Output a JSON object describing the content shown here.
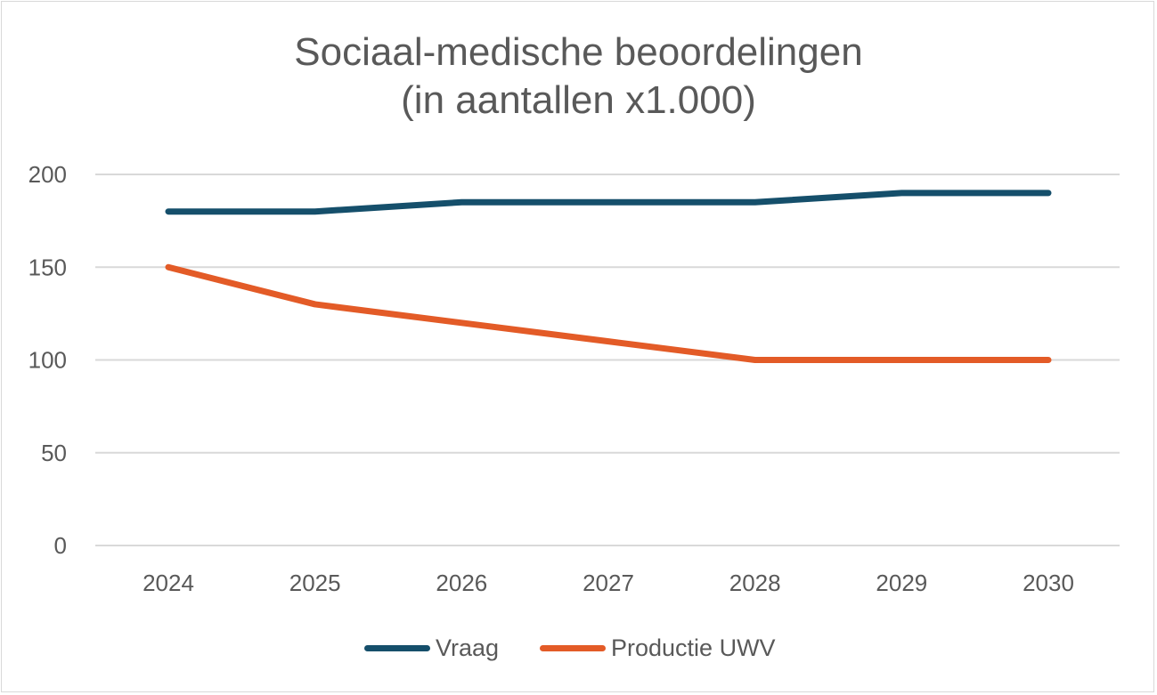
{
  "chart_data": {
    "type": "line",
    "title": "Sociaal-medische beoordelingen",
    "subtitle": "(in aantallen x1.000)",
    "xlabel": "",
    "ylabel": "",
    "categories": [
      "2024",
      "2025",
      "2026",
      "2027",
      "2028",
      "2029",
      "2030"
    ],
    "ylim": [
      0,
      200
    ],
    "yticks": [
      0,
      50,
      100,
      150,
      200
    ],
    "grid": true,
    "legend_position": "bottom",
    "series": [
      {
        "name": "Vraag",
        "color": "#154F6B",
        "values": [
          180,
          180,
          185,
          185,
          185,
          190,
          190
        ]
      },
      {
        "name": "Productie UWV",
        "color": "#E35B27",
        "values": [
          150,
          130,
          120,
          110,
          100,
          100,
          100
        ]
      }
    ]
  }
}
